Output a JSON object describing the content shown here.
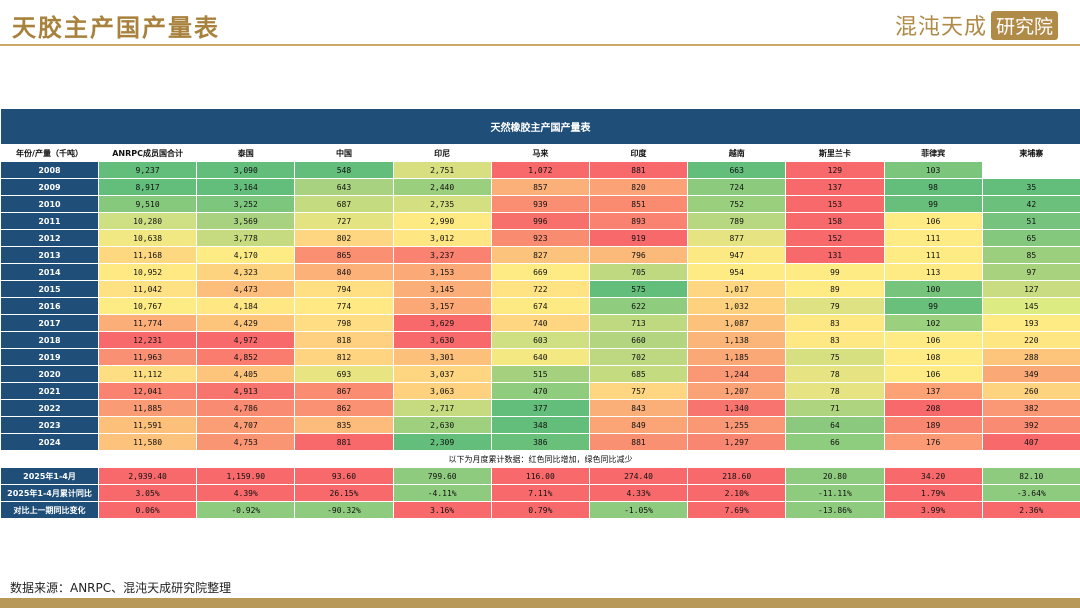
{
  "page": {
    "title": "天胶主产国产量表",
    "logo_main": "混沌天成",
    "logo_box": "研究院",
    "source": "数据来源：ANRPC、混沌天成研究院整理"
  },
  "table": {
    "title": "天然橡胶主产国产量表",
    "corner_label": "年份/产量（千吨）",
    "columns": [
      "ANRPC成员国合计",
      "泰国",
      "中国",
      "印尼",
      "马来",
      "印度",
      "越南",
      "斯里兰卡",
      "菲律宾",
      "柬埔寨"
    ],
    "rows": [
      {
        "label": "2008",
        "cells": [
          "9,237",
          "3,090",
          "548",
          "2,751",
          "1,072",
          "881",
          "663",
          "129",
          "103",
          ""
        ],
        "colors": [
          "#63be7b",
          "#63be7b",
          "#63be7b",
          "#d7df81",
          "#f8696b",
          "#f8696b",
          "#63be7b",
          "#f8696b",
          "#7bc57d",
          "#ffffff"
        ]
      },
      {
        "label": "2009",
        "cells": [
          "8,917",
          "3,164",
          "643",
          "2,440",
          "857",
          "820",
          "724",
          "137",
          "98",
          "35"
        ],
        "colors": [
          "#63be7b",
          "#63be7b",
          "#a8d27f",
          "#9acf7e",
          "#fcb079",
          "#fba276",
          "#8ccb7e",
          "#f8696b",
          "#63be7b",
          "#63be7b"
        ]
      },
      {
        "label": "2010",
        "cells": [
          "9,510",
          "3,252",
          "687",
          "2,735",
          "939",
          "851",
          "752",
          "153",
          "99",
          "42"
        ],
        "colors": [
          "#86c97d",
          "#7cc67d",
          "#c4db80",
          "#d4df81",
          "#f98e72",
          "#fa8b71",
          "#9acf7e",
          "#f8696b",
          "#67bf7b",
          "#6bc07b"
        ]
      },
      {
        "label": "2011",
        "cells": [
          "10,280",
          "3,569",
          "727",
          "2,990",
          "996",
          "893",
          "789",
          "158",
          "106",
          "51"
        ],
        "colors": [
          "#cee083",
          "#a8d27f",
          "#e4e382",
          "#feea83",
          "#f8706c",
          "#f98270",
          "#b7d780",
          "#f8696b",
          "#ffeb84",
          "#75c37c"
        ]
      },
      {
        "label": "2012",
        "cells": [
          "10,638",
          "3,778",
          "802",
          "3,012",
          "923",
          "919",
          "877",
          "152",
          "111",
          "65"
        ],
        "colors": [
          "#f2e883",
          "#c6db80",
          "#fed580",
          "#fee683",
          "#f98b71",
          "#f8696b",
          "#e6e482",
          "#f8696b",
          "#ffeb84",
          "#84c87d"
        ]
      },
      {
        "label": "2013",
        "cells": [
          "11,168",
          "4,170",
          "865",
          "3,237",
          "827",
          "796",
          "947",
          "131",
          "111",
          "85"
        ],
        "colors": [
          "#fed781",
          "#ffeb84",
          "#fa8f72",
          "#f98270",
          "#fcc37c",
          "#fcba7a",
          "#fde983",
          "#f8696b",
          "#ffeb84",
          "#9bcf7e"
        ]
      },
      {
        "label": "2014",
        "cells": [
          "10,952",
          "4,323",
          "840",
          "3,153",
          "669",
          "705",
          "954",
          "99",
          "113",
          "97"
        ],
        "colors": [
          "#fee983",
          "#fed37f",
          "#fcb179",
          "#fbaa77",
          "#ffeb84",
          "#bed980",
          "#ffeb84",
          "#ffeb84",
          "#ffeb84",
          "#a9d27f"
        ]
      },
      {
        "label": "2015",
        "cells": [
          "11,042",
          "4,473",
          "794",
          "3,145",
          "722",
          "575",
          "1,017",
          "89",
          "100",
          "127"
        ],
        "colors": [
          "#fee182",
          "#fdbd7b",
          "#ffdf82",
          "#fbae78",
          "#ffe282",
          "#63be7b",
          "#fed580",
          "#ffeb84",
          "#77c47c",
          "#c9dc81"
        ]
      },
      {
        "label": "2016",
        "cells": [
          "10,767",
          "4,184",
          "774",
          "3,157",
          "674",
          "622",
          "1,032",
          "79",
          "99",
          "145"
        ],
        "colors": [
          "#fdeb84",
          "#ffe783",
          "#ffe984",
          "#fba876",
          "#feea83",
          "#8fcc7e",
          "#fed17f",
          "#dfe282",
          "#69c07b",
          "#ddec82"
        ]
      },
      {
        "label": "2017",
        "cells": [
          "11,774",
          "4,429",
          "798",
          "3,629",
          "740",
          "713",
          "1,087",
          "83",
          "102",
          "193"
        ],
        "colors": [
          "#fbae78",
          "#fdc47c",
          "#ffdd82",
          "#f8696b",
          "#fed580",
          "#bfd980",
          "#fcc27b",
          "#fde883",
          "#9ad07e",
          "#ffeb84"
        ]
      },
      {
        "label": "2018",
        "cells": [
          "12,231",
          "4,972",
          "818",
          "3,630",
          "603",
          "660",
          "1,138",
          "83",
          "106",
          "220"
        ],
        "colors": [
          "#f8696b",
          "#f8696b",
          "#fed07f",
          "#f8696b",
          "#cfe082",
          "#b3d580",
          "#fcb579",
          "#fde883",
          "#ffeb84",
          "#fee683"
        ]
      },
      {
        "label": "2019",
        "cells": [
          "11,963",
          "4,852",
          "812",
          "3,301",
          "640",
          "702",
          "1,185",
          "75",
          "108",
          "288"
        ],
        "colors": [
          "#fa9073",
          "#f97c6f",
          "#fed480",
          "#fcc07b",
          "#f4e883",
          "#bdd880",
          "#fba877",
          "#d6e081",
          "#ffeb84",
          "#fdc57c"
        ]
      },
      {
        "label": "2020",
        "cells": [
          "11,112",
          "4,405",
          "693",
          "3,037",
          "515",
          "685",
          "1,244",
          "78",
          "106",
          "349"
        ],
        "colors": [
          "#fede82",
          "#fdc47c",
          "#e8e482",
          "#fed580",
          "#a5d17e",
          "#c4db80",
          "#fa9774",
          "#e6e482",
          "#ffeb84",
          "#fba877"
        ]
      },
      {
        "label": "2021",
        "cells": [
          "12,041",
          "4,913",
          "867",
          "3,063",
          "470",
          "757",
          "1,207",
          "78",
          "137",
          "260"
        ],
        "colors": [
          "#f98270",
          "#f8746e",
          "#fa8d71",
          "#fed17f",
          "#8fcc7e",
          "#fed581",
          "#fba377",
          "#e6e482",
          "#fca275",
          "#fed37f"
        ]
      },
      {
        "label": "2022",
        "cells": [
          "11,885",
          "4,786",
          "862",
          "2,717",
          "377",
          "843",
          "1,340",
          "71",
          "208",
          "382"
        ],
        "colors": [
          "#f99b74",
          "#f98b72",
          "#fb9173",
          "#c6db80",
          "#63be7b",
          "#fbaf78",
          "#f8746e",
          "#aed47f",
          "#f8696b",
          "#fa9774"
        ]
      },
      {
        "label": "2023",
        "cells": [
          "11,591",
          "4,707",
          "835",
          "2,630",
          "348",
          "849",
          "1,255",
          "64",
          "189",
          "392"
        ],
        "colors": [
          "#fcc07b",
          "#fb9e75",
          "#fdbc7b",
          "#9fd07e",
          "#63be7b",
          "#fba576",
          "#fa9774",
          "#8bca7e",
          "#f98671",
          "#f98b72"
        ]
      },
      {
        "label": "2024",
        "cells": [
          "11,580",
          "4,753",
          "881",
          "2,309",
          "386",
          "881",
          "1,297",
          "66",
          "176",
          "407"
        ],
        "colors": [
          "#fdc27b",
          "#fa9574",
          "#f8696b",
          "#63be7b",
          "#69c07b",
          "#fa9072",
          "#f98671",
          "#8ecc7e",
          "#fb9a74",
          "#f8696b"
        ]
      }
    ],
    "note": "以下为月度累计数据：红色同比增加，绿色同比减少",
    "summary_rows": [
      {
        "label": "2025年1-4月",
        "cells": [
          "2,939.40",
          "1,159.90",
          "93.60",
          "799.60",
          "116.00",
          "274.40",
          "218.60",
          "20.80",
          "34.20",
          "82.10"
        ],
        "colors": [
          "#f8696b",
          "#f8696b",
          "#f8696b",
          "#8ecb7e",
          "#f8696b",
          "#f8696b",
          "#f8696b",
          "#8ecb7e",
          "#f8696b",
          "#8ecb7e"
        ]
      },
      {
        "label": "2025年1-4月累计同比",
        "cells": [
          "3.05%",
          "4.39%",
          "26.15%",
          "-4.11%",
          "7.11%",
          "4.33%",
          "2.10%",
          "-11.11%",
          "1.79%",
          "-3.64%"
        ],
        "colors": [
          "#f8696b",
          "#f8696b",
          "#f8696b",
          "#8ecb7e",
          "#f8696b",
          "#f8696b",
          "#f8696b",
          "#8ecb7e",
          "#f8696b",
          "#8ecb7e"
        ]
      },
      {
        "label": "对比上一期同比变化",
        "cells": [
          "0.06%",
          "-0.92%",
          "-90.32%",
          "3.16%",
          "0.79%",
          "-1.05%",
          "7.69%",
          "-13.86%",
          "3.99%",
          "2.36%"
        ],
        "colors": [
          "#f8696b",
          "#8ecb7e",
          "#8ecb7e",
          "#f8696b",
          "#f8696b",
          "#8ecb7e",
          "#f8696b",
          "#8ecb7e",
          "#f8696b",
          "#f8696b"
        ]
      }
    ]
  }
}
